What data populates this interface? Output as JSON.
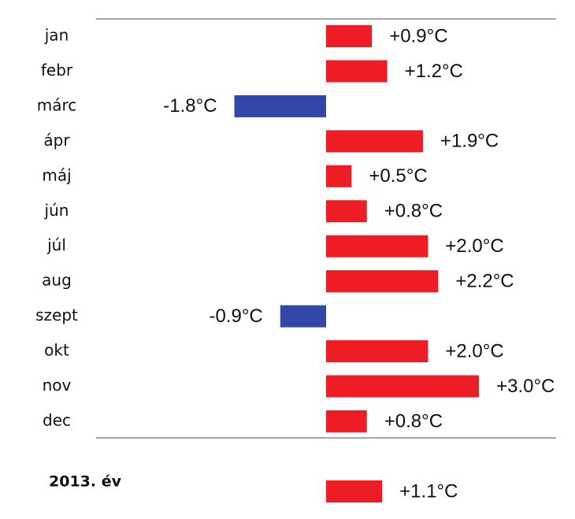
{
  "chart_data": {
    "type": "bar",
    "orientation": "horizontal",
    "categories": [
      "jan",
      "febr",
      "márc",
      "ápr",
      "máj",
      "jún",
      "júl",
      "aug",
      "szept",
      "okt",
      "nov",
      "dec"
    ],
    "values": [
      0.9,
      1.2,
      -1.8,
      1.9,
      0.5,
      0.8,
      2.0,
      2.2,
      -0.9,
      2.0,
      3.0,
      0.8
    ],
    "value_labels": [
      "+0.9°C",
      "+1.2°C",
      "-1.8°C",
      "+1.9°C",
      "+0.5°C",
      "+0.8°C",
      "+2.0°C",
      "+2.2°C",
      "-0.9°C",
      "+2.0°C",
      "+3.0°C",
      "+0.8°C"
    ],
    "colors": {
      "positive": "#ee1c25",
      "negative": "#3347a8"
    },
    "annual": {
      "label": "2013. év",
      "value": 1.1,
      "value_label": "+1.1°C"
    }
  }
}
